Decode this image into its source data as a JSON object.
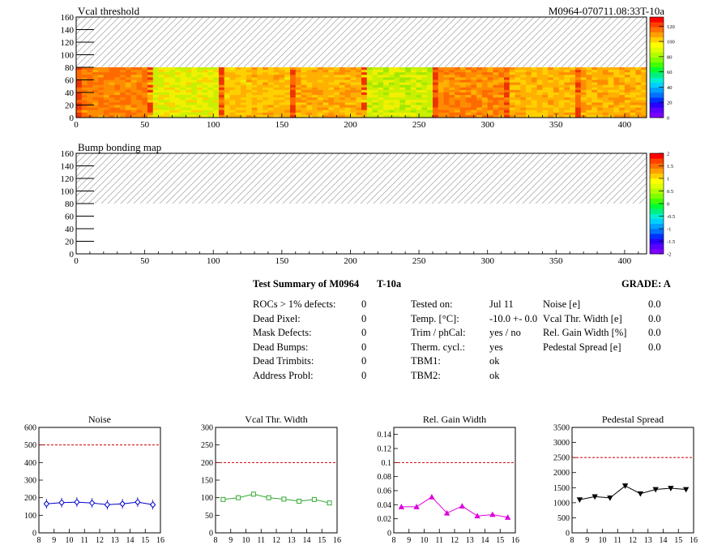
{
  "header": {
    "vcal_title": "Vcal threshold",
    "id_title": "M0964-070711.08:33T-10a",
    "bump_title": "Bump bonding map"
  },
  "maps": {
    "x_ticks": [
      "0",
      "50",
      "100",
      "150",
      "200",
      "250",
      "300",
      "350",
      "400"
    ],
    "y_ticks": [
      "0",
      "20",
      "40",
      "60",
      "80",
      "100",
      "120",
      "140",
      "160"
    ],
    "vcal_palette_labels": [
      "0",
      "20",
      "40",
      "60",
      "80",
      "100",
      "120"
    ],
    "bump_palette_labels": [
      "-2",
      "-1.5",
      "-1",
      "-0.5",
      "0",
      "0.5",
      "1",
      "1.5",
      "2"
    ]
  },
  "summary": {
    "title": "Test Summary of M0964",
    "temp_tag": "T-10a",
    "grade": "GRADE:  A",
    "col1": [
      {
        "label": "ROCs > 1% defects:",
        "value": "0"
      },
      {
        "label": "Dead Pixel:",
        "value": "0"
      },
      {
        "label": "Mask Defects:",
        "value": "0"
      },
      {
        "label": "Dead Bumps:",
        "value": "0"
      },
      {
        "label": "Dead Trimbits:",
        "value": "0"
      },
      {
        "label": "Address Probl:",
        "value": "0"
      }
    ],
    "col2": [
      {
        "label": "Tested on:",
        "value": "Jul 11"
      },
      {
        "label": "Temp. [°C]:",
        "value": "-10.0 +- 0.0"
      },
      {
        "label": "Trim / phCal:",
        "value": "yes / no"
      },
      {
        "label": "Therm. cycl.:",
        "value": "yes"
      },
      {
        "label": "TBM1:",
        "value": "ok"
      },
      {
        "label": "TBM2:",
        "value": "ok"
      }
    ],
    "col3": [
      {
        "label": "Noise [e]",
        "value": "0.0"
      },
      {
        "label": "Vcal Thr. Width [e]",
        "value": "0.0"
      },
      {
        "label": "Rel. Gain Width [%]",
        "value": "0.0"
      },
      {
        "label": "Pedestal Spread [e]",
        "value": "0.0"
      }
    ]
  },
  "colors": {
    "noise": "#0000cc",
    "vcal": "#33aa33",
    "gain": "#dd00dd",
    "pedestal": "#000000",
    "limit": "#cc0000"
  },
  "chart_data": [
    {
      "type": "line",
      "title": "Noise",
      "x": [
        8.5,
        9.5,
        10.5,
        11.5,
        12.5,
        13.5,
        14.5,
        15.5
      ],
      "values": [
        165,
        172,
        175,
        170,
        160,
        165,
        175,
        160
      ],
      "ylim": [
        0,
        600
      ],
      "xlim": [
        8,
        16
      ],
      "limit": 500,
      "yticks": [
        "0",
        "100",
        "200",
        "300",
        "400",
        "500",
        "600"
      ],
      "xticks": [
        "8",
        "9",
        "10",
        "11",
        "12",
        "13",
        "14",
        "15",
        "16"
      ],
      "marker": "diamond"
    },
    {
      "type": "line",
      "title": "Vcal Thr. Width",
      "x": [
        8.5,
        9.5,
        10.5,
        11.5,
        12.5,
        13.5,
        14.5,
        15.5
      ],
      "values": [
        95,
        100,
        110,
        100,
        96,
        90,
        95,
        85
      ],
      "ylim": [
        0,
        300
      ],
      "xlim": [
        8,
        16
      ],
      "limit": 200,
      "yticks": [
        "0",
        "50",
        "100",
        "150",
        "200",
        "250",
        "300"
      ],
      "xticks": [
        "8",
        "9",
        "10",
        "11",
        "12",
        "13",
        "14",
        "15",
        "16"
      ],
      "marker": "square"
    },
    {
      "type": "line",
      "title": "Rel. Gain Width",
      "x": [
        8.5,
        9.5,
        10.5,
        11.5,
        12.5,
        13.5,
        14.5,
        15.5
      ],
      "values": [
        0.037,
        0.037,
        0.051,
        0.028,
        0.038,
        0.024,
        0.026,
        0.022
      ],
      "ylim": [
        0,
        0.15
      ],
      "xlim": [
        8,
        16
      ],
      "limit": 0.1,
      "yticks": [
        "0",
        "0.02",
        "0.04",
        "0.06",
        "0.08",
        "0.1",
        "0.12",
        "0.14"
      ],
      "xticks": [
        "8",
        "9",
        "10",
        "11",
        "12",
        "13",
        "14",
        "15",
        "16"
      ],
      "marker": "triangle"
    },
    {
      "type": "line",
      "title": "Pedestal Spread",
      "x": [
        8.5,
        9.5,
        10.5,
        11.5,
        12.5,
        13.5,
        14.5,
        15.5
      ],
      "values": [
        1100,
        1200,
        1160,
        1560,
        1300,
        1440,
        1480,
        1440
      ],
      "ylim": [
        0,
        3500
      ],
      "xlim": [
        8,
        16
      ],
      "limit": 2500,
      "yticks": [
        "0",
        "500",
        "1000",
        "1500",
        "2000",
        "2500",
        "3000",
        "3500"
      ],
      "xticks": [
        "8",
        "9",
        "10",
        "11",
        "12",
        "13",
        "14",
        "15",
        "16"
      ],
      "marker": "invtriangle"
    }
  ]
}
